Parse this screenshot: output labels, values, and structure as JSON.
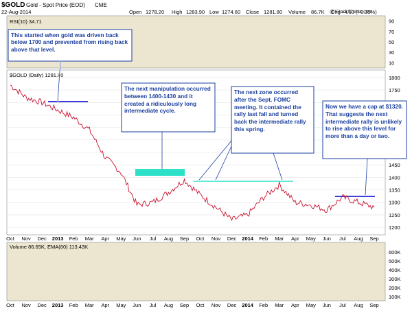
{
  "header": {
    "symbol": "$GOLD",
    "name": "Gold - Spot Price (EOD)",
    "exchange": "CME",
    "date": "22-Aug-2014",
    "open_label": "Open",
    "open": "1278.20",
    "high_label": "High",
    "high": "1283.90",
    "low_label": "Low",
    "low": "1274.60",
    "close_label": "Close",
    "close": "1281.80",
    "volume_label": "Volume",
    "volume": "86.7K",
    "chg_label": "Chg",
    "chg": "+4.50 (+0.35%)",
    "brand": "@ StockCharts.com",
    "up_arrow": "▲"
  },
  "rsi_panel": {
    "label": "RSI(10) 34.71",
    "ticks": [
      90,
      70,
      50,
      30,
      10
    ],
    "ylim": [
      0,
      100
    ]
  },
  "price_panel": {
    "label": "$GOLD (Daily) 1281.80",
    "ticks": [
      1800,
      1750,
      1700,
      1650,
      1600,
      1550,
      1500,
      1450,
      1400,
      1350,
      1300,
      1250,
      1200
    ],
    "ylim": [
      1170,
      1830
    ]
  },
  "volume_panel": {
    "label": "Volume 86.65K, EMA(60) 113.43K",
    "ticks": [
      "600K",
      "500K",
      "400K",
      "300K",
      "200K",
      "100K"
    ]
  },
  "x_axis": {
    "labels": [
      "Oct",
      "Nov",
      "Dec",
      "2013",
      "Feb",
      "Mar",
      "Apr",
      "May",
      "Jun",
      "Jul",
      "Aug",
      "Sep",
      "Oct",
      "Nov",
      "Dec",
      "2014",
      "Feb",
      "Mar",
      "Apr",
      "May",
      "Jun",
      "Jul",
      "Aug",
      "Sep"
    ]
  },
  "annotations": [
    {
      "text": "This started when gold was driven back below 1700 and prevented from rising back above that level."
    },
    {
      "text": "The next manipulation occurred between 1400-1430 and it created a ridiculously long intermediate cycle."
    },
    {
      "text": "The next zone occurred after the Sept. FOMC meeting. It contained the rally last fall and turned back the intermediate rally this spring."
    },
    {
      "text": "Now we have a cap at $1320. That suggests the next intermediate rally is unlikely to rise above this level for more than a day or two."
    }
  ],
  "colors": {
    "panel_bg": "#ece6d0",
    "price_bg": "#ffffff",
    "price_line": "#c8102e",
    "resistance_line": "#0000cc",
    "zone_fill": "#2de0c8",
    "box_border": "#1a3fa0",
    "box_text": "#1a3fa0"
  },
  "chart_data": {
    "type": "line",
    "title": "Gold - Spot Price (EOD)",
    "xlabel": "",
    "ylabel": "",
    "ylim": [
      1170,
      1830
    ],
    "x": [
      "Oct",
      "Nov",
      "Dec",
      "2013",
      "Feb",
      "Mar",
      "Apr",
      "May",
      "Jun",
      "Jul",
      "Aug",
      "Sep",
      "Oct",
      "Nov",
      "Dec",
      "2014",
      "Feb",
      "Mar",
      "Apr",
      "May",
      "Jun",
      "Jul",
      "Aug",
      "Sep"
    ],
    "series": [
      {
        "name": "$GOLD (Daily)",
        "values": [
          1770,
          1720,
          1700,
          1670,
          1640,
          1590,
          1480,
          1420,
          1290,
          1300,
          1340,
          1390,
          1330,
          1280,
          1230,
          1250,
          1320,
          1370,
          1300,
          1290,
          1270,
          1320,
          1300,
          1280
        ]
      }
    ],
    "levels": [
      {
        "name": "1700 resistance",
        "value": 1700
      },
      {
        "name": "1400-1430 zone",
        "low": 1400,
        "high": 1430
      },
      {
        "name": "FOMC zone",
        "value": 1380
      },
      {
        "name": "1320 cap",
        "value": 1320
      }
    ]
  }
}
